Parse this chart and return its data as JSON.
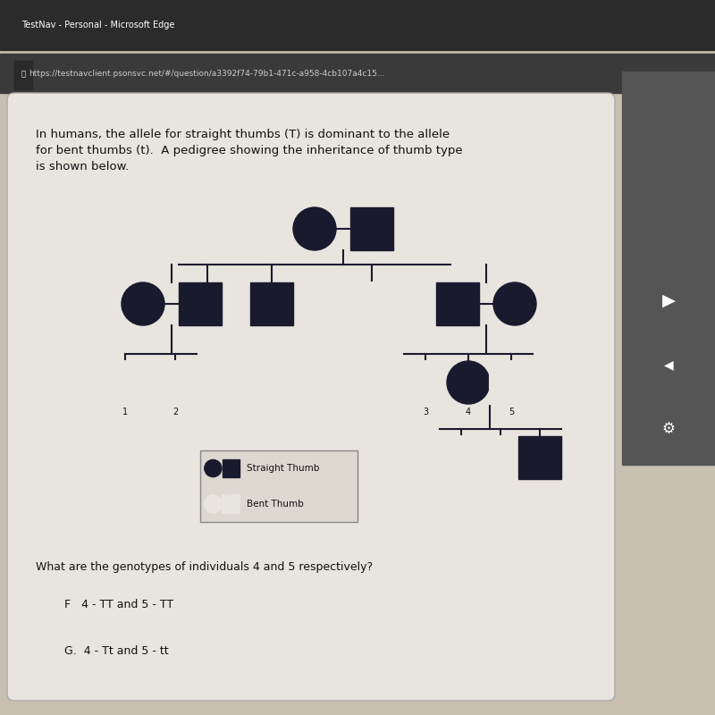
{
  "bg_color": "#c8bfb0",
  "browser_bar_color": "#2b2b2b",
  "content_bg": "#d4cfc8",
  "card_bg": "#e8e4de",
  "title_text": "In humans, the allele for straight thumbs (T) is dominant to the allele\nfor bent thumbs (t).  A pedigree showing the inheritance of thumb type\nis shown below.",
  "question_text": "What are the genotypes of individuals 4 and 5 respectively?",
  "option_F": "F   4 - TT and 5 - TT",
  "option_G": "G.  4 - Tt and 5 - tt",
  "legend_straight": "Straight Thumb",
  "legend_bent": "Bent Thumb",
  "url_text": "https://testnavclient.psonsvc.net/#/question/a3392f74-79b1-471c-a958-4cb107a4c15...",
  "browser_title": "TestNav - Personal - Microsoft Edge",
  "symbol_size": 0.03,
  "filled_color": "#1a1a2e",
  "empty_color": "#e8e4de",
  "line_color": "#1a1a2e"
}
